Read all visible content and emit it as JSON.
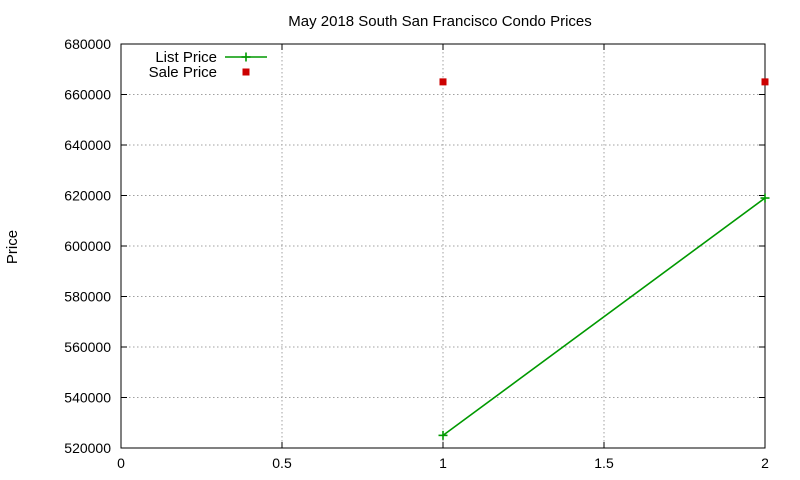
{
  "chart_data": {
    "type": "line",
    "title": "May 2018 South San Francisco Condo Prices",
    "xlabel": "",
    "ylabel": "Price",
    "xlim": [
      0,
      2
    ],
    "ylim": [
      520000,
      680000
    ],
    "xticks": [
      0,
      0.5,
      1,
      1.5,
      2
    ],
    "yticks": [
      520000,
      540000,
      560000,
      580000,
      600000,
      620000,
      640000,
      660000,
      680000
    ],
    "grid": true,
    "legend_position": "top-left",
    "series": [
      {
        "name": "List Price",
        "style": "line-with-plus-markers",
        "color": "#009900",
        "x": [
          1,
          2
        ],
        "y": [
          525000,
          619000
        ]
      },
      {
        "name": "Sale Price",
        "style": "square-markers",
        "color": "#cc0000",
        "x": [
          1,
          2
        ],
        "y": [
          665000,
          665000
        ]
      }
    ]
  }
}
